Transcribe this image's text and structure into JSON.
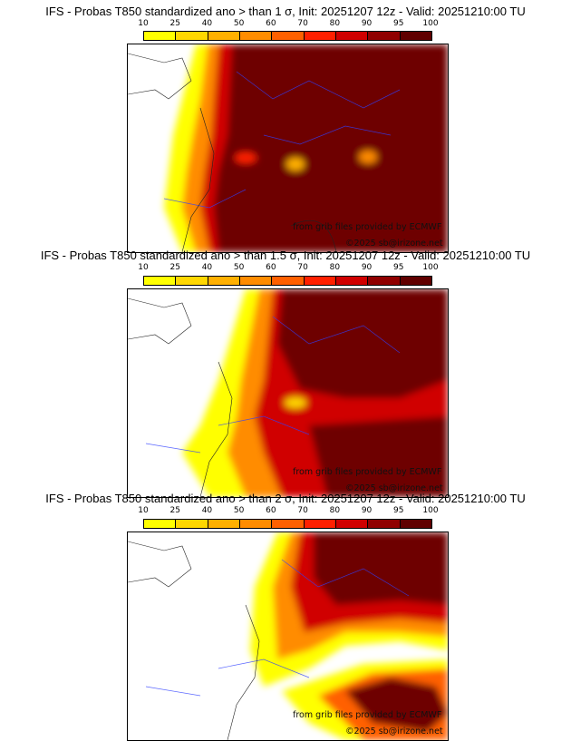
{
  "colorbar": {
    "ticks": [
      "10",
      "25",
      "40",
      "50",
      "60",
      "70",
      "80",
      "90",
      "95",
      "100"
    ],
    "colors": [
      "#ffff00",
      "#ffd700",
      "#ffb000",
      "#ff8c00",
      "#ff6000",
      "#ff2000",
      "#d00000",
      "#900000",
      "#600000"
    ]
  },
  "panels": [
    {
      "title": "IFS - Probas T850  standardized ano > than 1 σ, Init: 20251207 12z - Valid: 20251210:00 TU",
      "credit": "from grib files provided by ECMWF",
      "copyright": "©2025 sb@irizone.net"
    },
    {
      "title": "IFS - Probas T850  standardized ano > than 1.5 σ, Init: 20251207 12z - Valid: 20251210:00 TU",
      "credit": "from grib files provided by ECMWF",
      "copyright": "©2025 sb@irizone.net"
    },
    {
      "title": "IFS - Probas T850  standardized ano > than 2 σ, Init: 20251207 12z - Valid: 20251210:00 TU",
      "credit": "from grib files provided by ECMWF",
      "copyright": "©2025 sb@irizone.net"
    }
  ]
}
